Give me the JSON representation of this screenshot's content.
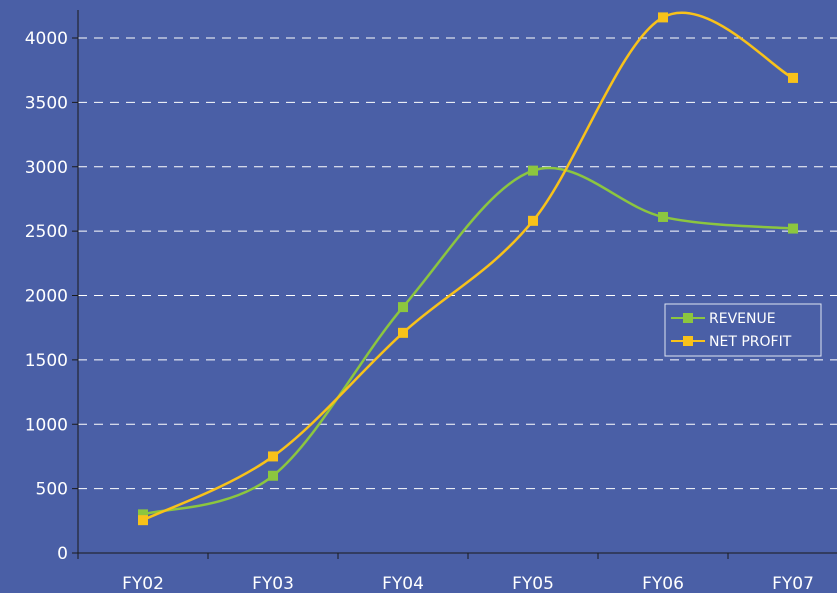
{
  "chart_data": {
    "type": "line",
    "title": "",
    "xlabel": "",
    "ylabel": "",
    "categories": [
      "FY02",
      "FY03",
      "FY04",
      "FY05",
      "FY06",
      "FY07"
    ],
    "ylim": [
      0,
      4200
    ],
    "yticks": [
      0,
      500,
      1000,
      1500,
      2000,
      2500,
      3000,
      3500,
      4000
    ],
    "grid": "horizontal dashed",
    "legend_position": "right",
    "background_color": "#4a5fa6",
    "series": [
      {
        "name": "REVENUE",
        "color": "#8cc63f",
        "values": [
          300,
          600,
          1910,
          2970,
          2610,
          2520
        ]
      },
      {
        "name": "NET PROFIT",
        "color": "#f8c21a",
        "values": [
          255,
          750,
          1710,
          2580,
          4160,
          3690
        ]
      }
    ]
  }
}
